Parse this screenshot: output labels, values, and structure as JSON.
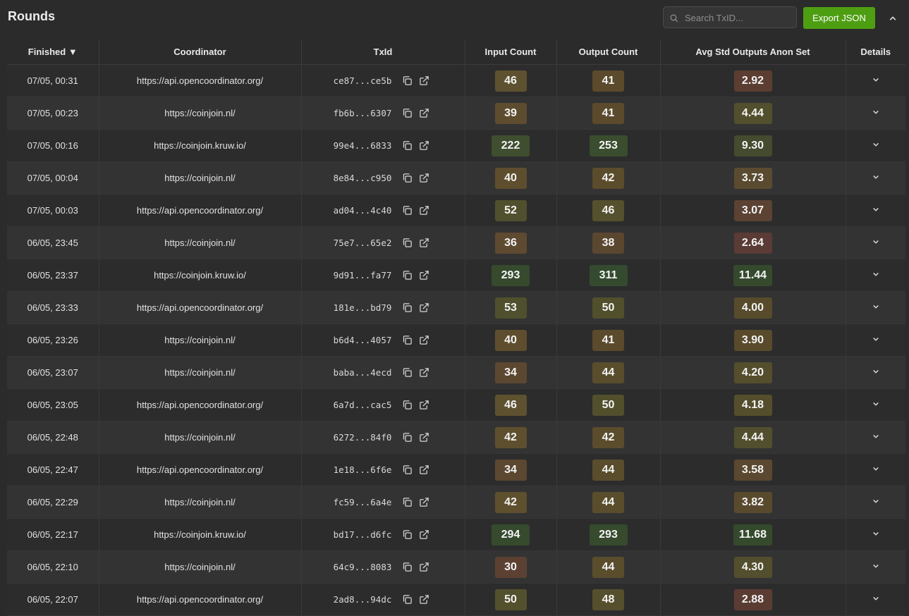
{
  "header": {
    "title": "Rounds",
    "search_placeholder": "Search TxID...",
    "export_label": "Export JSON"
  },
  "table": {
    "columns": [
      "Finished ▼",
      "Coordinator",
      "TxId",
      "Input Count",
      "Output Count",
      "Avg Std Outputs Anon Set",
      "Details"
    ],
    "rows": [
      {
        "finished": "07/05, 00:31",
        "coordinator": "https://api.opencoordinator.org/",
        "txid": "ce87...ce5b",
        "input": "46",
        "output": "41",
        "anon": "2.92",
        "input_color": "#5e5130",
        "output_color": "#5b4a2c",
        "anon_color": "#5b3d32"
      },
      {
        "finished": "07/05, 00:23",
        "coordinator": "https://coinjoin.nl/",
        "txid": "fb6b...6307",
        "input": "39",
        "output": "41",
        "anon": "4.44",
        "input_color": "#5e4c2f",
        "output_color": "#5b4a2c",
        "anon_color": "#524f2e"
      },
      {
        "finished": "07/05, 00:16",
        "coordinator": "https://coinjoin.kruw.io/",
        "txid": "99e4...6833",
        "input": "222",
        "output": "253",
        "anon": "9.30",
        "input_color": "#3f4e2f",
        "output_color": "#3a4d2e",
        "anon_color": "#444b2e"
      },
      {
        "finished": "07/05, 00:04",
        "coordinator": "https://coinjoin.nl/",
        "txid": "8e84...c950",
        "input": "40",
        "output": "42",
        "anon": "3.73",
        "input_color": "#5e4e2e",
        "output_color": "#5b4c2c",
        "anon_color": "#5a4b30"
      },
      {
        "finished": "07/05, 00:03",
        "coordinator": "https://api.opencoordinator.org/",
        "txid": "ad04...4c40",
        "input": "52",
        "output": "46",
        "anon": "3.07",
        "input_color": "#51502e",
        "output_color": "#55502d",
        "anon_color": "#5b4233"
      },
      {
        "finished": "06/05, 23:45",
        "coordinator": "https://coinjoin.nl/",
        "txid": "75e7...65e2",
        "input": "36",
        "output": "38",
        "anon": "2.64",
        "input_color": "#5e4a30",
        "output_color": "#5b4630",
        "anon_color": "#5a3b35"
      },
      {
        "finished": "06/05, 23:37",
        "coordinator": "https://coinjoin.kruw.io/",
        "txid": "9d91...fa77",
        "input": "293",
        "output": "311",
        "anon": "11.44",
        "input_color": "#364a2e",
        "output_color": "#344b2f",
        "anon_color": "#354a2d"
      },
      {
        "finished": "06/05, 23:33",
        "coordinator": "https://api.opencoordinator.org/",
        "txid": "181e...bd79",
        "input": "53",
        "output": "50",
        "anon": "4.00",
        "input_color": "#50502e",
        "output_color": "#524f2d",
        "anon_color": "#574b2c"
      },
      {
        "finished": "06/05, 23:26",
        "coordinator": "https://coinjoin.nl/",
        "txid": "b6d4...4057",
        "input": "40",
        "output": "41",
        "anon": "3.90",
        "input_color": "#5e4e2e",
        "output_color": "#5b4a2c",
        "anon_color": "#594a2c"
      },
      {
        "finished": "06/05, 23:07",
        "coordinator": "https://coinjoin.nl/",
        "txid": "baba...4ecd",
        "input": "34",
        "output": "44",
        "anon": "4.20",
        "input_color": "#5c4731",
        "output_color": "#594d2c",
        "anon_color": "#544e2d"
      },
      {
        "finished": "06/05, 23:05",
        "coordinator": "https://api.opencoordinator.org/",
        "txid": "6a7d...cac5",
        "input": "46",
        "output": "50",
        "anon": "4.18",
        "input_color": "#5e5130",
        "output_color": "#524f2d",
        "anon_color": "#554e2d"
      },
      {
        "finished": "06/05, 22:48",
        "coordinator": "https://coinjoin.nl/",
        "txid": "6272...84f0",
        "input": "42",
        "output": "42",
        "anon": "4.44",
        "input_color": "#5e4f2e",
        "output_color": "#5b4c2c",
        "anon_color": "#524f2e"
      },
      {
        "finished": "06/05, 22:47",
        "coordinator": "https://api.opencoordinator.org/",
        "txid": "1e18...6f6e",
        "input": "34",
        "output": "44",
        "anon": "3.58",
        "input_color": "#5c4731",
        "output_color": "#594d2c",
        "anon_color": "#5b4830"
      },
      {
        "finished": "06/05, 22:29",
        "coordinator": "https://coinjoin.nl/",
        "txid": "fc59...6a4e",
        "input": "42",
        "output": "44",
        "anon": "3.82",
        "input_color": "#5e4f2e",
        "output_color": "#594d2c",
        "anon_color": "#594a2e"
      },
      {
        "finished": "06/05, 22:17",
        "coordinator": "https://coinjoin.kruw.io/",
        "txid": "bd17...d6fc",
        "input": "294",
        "output": "293",
        "anon": "11.68",
        "input_color": "#364a2e",
        "output_color": "#364a2e",
        "anon_color": "#354a2d"
      },
      {
        "finished": "06/05, 22:10",
        "coordinator": "https://coinjoin.nl/",
        "txid": "64c9...8083",
        "input": "30",
        "output": "44",
        "anon": "4.30",
        "input_color": "#5c4133",
        "output_color": "#594d2c",
        "anon_color": "#534e2d"
      },
      {
        "finished": "06/05, 22:07",
        "coordinator": "https://api.opencoordinator.org/",
        "txid": "2ad8...94dc",
        "input": "50",
        "output": "48",
        "anon": "2.88",
        "input_color": "#53502d",
        "output_color": "#564f2d",
        "anon_color": "#5b3c33"
      }
    ]
  },
  "icons": {
    "search": "search-icon",
    "copy": "copy-icon",
    "external": "external-link-icon",
    "chevron_down": "chevron-down-icon",
    "chevron_up": "chevron-up-icon"
  },
  "colors": {
    "accent": "#4e9e12",
    "background": "#2b2b2b"
  }
}
